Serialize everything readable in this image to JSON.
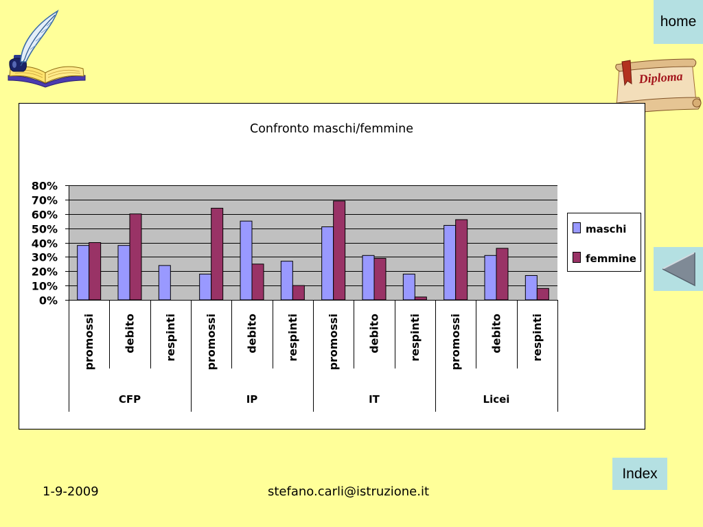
{
  "slide": {
    "background_color": "#FFFF99",
    "button_color": "#B4E0E2",
    "home_button": {
      "label": "home"
    },
    "back_button": {
      "icon": "left-triangle-icon"
    },
    "index_button": {
      "label": "Index"
    },
    "logo": {
      "icon": "quill-and-book-icon"
    },
    "diploma": {
      "icon": "diploma-scroll-icon",
      "label": "Diploma"
    },
    "footer": {
      "date": "1-9-2009",
      "email": "stefano.carli@istruzione.it"
    }
  },
  "chart_data": {
    "type": "bar",
    "title": "Confronto maschi/femmine",
    "groups": [
      {
        "label": "CFP",
        "categories": [
          "promossi",
          "debito",
          "respinti"
        ]
      },
      {
        "label": "IP",
        "categories": [
          "promossi",
          "debito",
          "respinti"
        ]
      },
      {
        "label": "IT",
        "categories": [
          "promossi",
          "debito",
          "respinti"
        ]
      },
      {
        "label": "Licei",
        "categories": [
          "promossi",
          "debito",
          "respinti"
        ]
      }
    ],
    "series": [
      {
        "name": "maschi",
        "color": "#9999FF",
        "values": [
          38,
          38,
          24,
          18,
          55,
          27,
          51,
          31,
          18,
          52,
          31,
          17
        ]
      },
      {
        "name": "femmine",
        "color": "#993366",
        "values": [
          40,
          60,
          0,
          64,
          25,
          10,
          69,
          29,
          2,
          56,
          36,
          8
        ]
      }
    ],
    "ylim": [
      0,
      80
    ],
    "yticks": [
      0,
      10,
      20,
      30,
      40,
      50,
      60,
      70,
      80
    ],
    "ytick_labels": [
      "0%",
      "10%",
      "20%",
      "30%",
      "40%",
      "50%",
      "60%",
      "70%",
      "80%"
    ],
    "grid": true,
    "legend": "right",
    "plot_background": "#C0C0C0"
  }
}
